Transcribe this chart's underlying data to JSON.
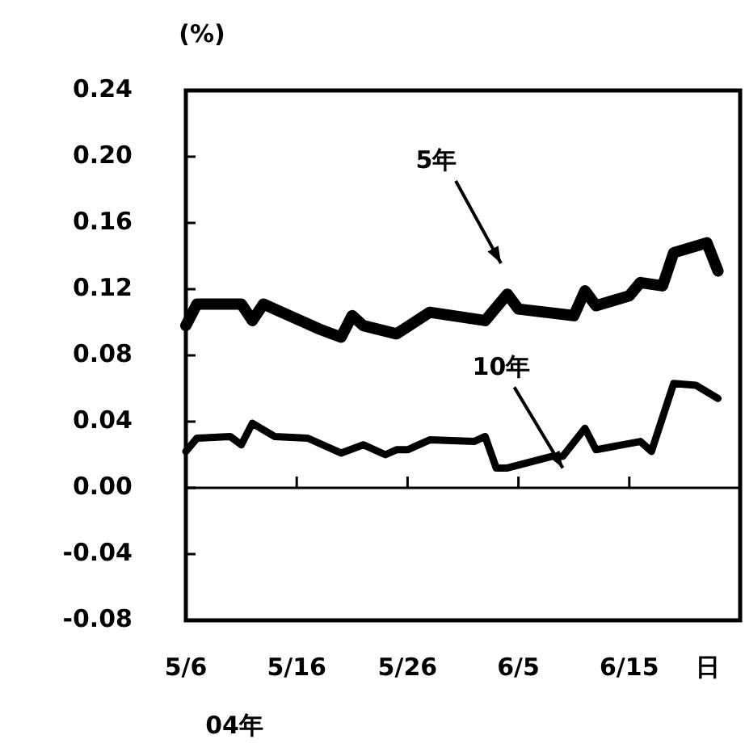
{
  "chart_data": {
    "type": "line",
    "ylabel": "(%)",
    "xlabel": "日",
    "annotations": [
      "04年",
      "5年",
      {
        "text": "10年",
        "x": "--06-09",
        "y": 0.012
      }
    ],
    "xlim": [
      "--05-06",
      "--06-25"
    ],
    "xticks": [
      {
        "value": "--05-06",
        "label": "5/6"
      },
      {
        "value": "--05-16",
        "label": "5/16"
      },
      {
        "value": "--05-26",
        "label": "5/26"
      },
      {
        "value": "--06-05",
        "label": "6/5"
      },
      {
        "value": "--06-15",
        "label": "6/15"
      }
    ],
    "ylim": [
      -0.08,
      0.24
    ],
    "yticks": [
      {
        "value": 0.24,
        "label": "0.24"
      },
      {
        "value": 0.2,
        "label": "0.20"
      },
      {
        "value": 0.16,
        "label": "0.16"
      },
      {
        "value": 0.12,
        "label": "0.12"
      },
      {
        "value": 0.08,
        "label": "0.08"
      },
      {
        "value": 0.04,
        "label": "0.04"
      },
      {
        "value": 0,
        "label": "0.00"
      },
      {
        "value": -0.04,
        "label": "-0.04"
      },
      {
        "value": -0.08,
        "label": "-0.08"
      }
    ],
    "ref_lines": [
      {
        "axis": "y",
        "value": 0,
        "label": null
      }
    ],
    "marker": "none",
    "line_style": "solid",
    "series": [
      {
        "color": "#000000",
        "x": [
          "--05-06",
          "--05-07",
          "--05-11",
          "--05-12",
          "--05-13",
          "--05-14",
          "--05-18",
          "--05-20",
          "--05-21",
          "--05-22",
          "--05-25",
          "--05-28",
          "--06-02",
          "--06-04",
          "--06-05",
          "--06-10",
          "--06-11",
          "--06-12",
          "--06-15",
          "--06-16",
          "--06-18",
          "--06-19",
          "--06-22",
          "--06-23"
        ],
        "values": [
          0.098,
          0.111,
          0.111,
          0.101,
          0.111,
          0.108,
          0.096,
          0.091,
          0.104,
          0.098,
          0.093,
          0.106,
          0.101,
          0.117,
          0.108,
          0.104,
          0.119,
          0.11,
          0.116,
          0.124,
          0.122,
          0.142,
          0.148,
          0.131
        ]
      },
      {
        "color": "#000000",
        "x": [
          "--05-06",
          "--05-07",
          "--05-10",
          "--05-11",
          "--05-12",
          "--05-14",
          "--05-17",
          "--05-20",
          "--05-22",
          "--05-24",
          "--05-25",
          "--05-26",
          "--05-28",
          "--06-01",
          "--06-02",
          "--06-03",
          "--06-04",
          "--06-08",
          "--06-09",
          "--06-11",
          "--06-12",
          "--06-16",
          "--06-17",
          "--06-19",
          "--06-21",
          "--06-23"
        ],
        "values": [
          0.022,
          0.03,
          0.031,
          0.026,
          0.039,
          0.031,
          0.03,
          0.021,
          0.026,
          0.02,
          0.023,
          0.023,
          0.029,
          0.028,
          0.031,
          0.012,
          0.012,
          0.019,
          0.019,
          0.036,
          0.023,
          0.028,
          0.022,
          0.063,
          0.062,
          0.054
        ]
      }
    ]
  }
}
